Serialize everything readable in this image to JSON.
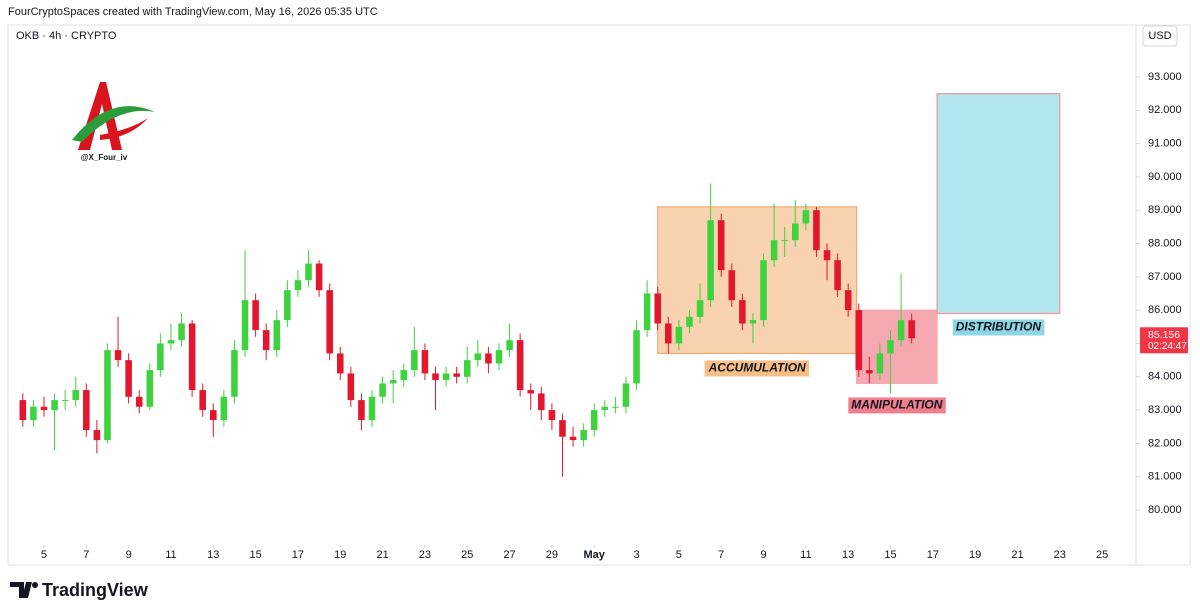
{
  "header": {
    "attribution": "FourCryptoSpaces created with TradingView.com, May 16, 2026 05:35 UTC",
    "symbol": "OKB · 4h · CRYPTO",
    "currency": "USD",
    "brand": "TradingView",
    "watermark": "@X_Four_iv"
  },
  "chart_data": {
    "type": "candlestick",
    "up_color": "#3fd23f",
    "down_color": "#e3162d",
    "xlim": [
      3.3,
      56.6
    ],
    "ylim": [
      79.1,
      93.96
    ],
    "xticks": [
      5,
      7,
      9,
      11,
      13,
      15,
      17,
      19,
      21,
      23,
      25,
      27,
      29,
      {
        "value": 31,
        "label": "May"
      },
      {
        "value": 33,
        "label": "3"
      },
      {
        "value": 35,
        "label": "5"
      },
      {
        "value": 37,
        "label": "7"
      },
      {
        "value": 39,
        "label": "9"
      },
      {
        "value": 41,
        "label": "11"
      },
      {
        "value": 43,
        "label": "13"
      },
      {
        "value": 45,
        "label": "15"
      },
      {
        "value": 47,
        "label": "17"
      },
      {
        "value": 49,
        "label": "19"
      },
      {
        "value": 51,
        "label": "21"
      },
      {
        "value": 53,
        "label": "23"
      },
      {
        "value": 55,
        "label": "25"
      }
    ],
    "yticks": [
      {
        "value": 80,
        "label": "80.000"
      },
      {
        "value": 81,
        "label": "81.000"
      },
      {
        "value": 82,
        "label": "82.000"
      },
      {
        "value": 83,
        "label": "83.000"
      },
      {
        "value": 84,
        "label": "84.000"
      },
      {
        "value": 85,
        "label": "85.000"
      },
      {
        "value": 86,
        "label": "86.000"
      },
      {
        "value": 87,
        "label": "87.000"
      },
      {
        "value": 88,
        "label": "88.000"
      },
      {
        "value": 89,
        "label": "89.000"
      },
      {
        "value": 90,
        "label": "90.000"
      },
      {
        "value": 91,
        "label": "91.000"
      },
      {
        "value": 92,
        "label": "92.000"
      },
      {
        "value": 93,
        "label": "93.000"
      }
    ],
    "x": [
      4,
      4.5,
      5,
      5.5,
      6,
      6.5,
      7,
      7.5,
      8,
      8.5,
      9,
      9.5,
      10,
      10.5,
      11,
      11.5,
      12,
      12.5,
      13,
      13.5,
      14,
      14.5,
      15,
      15.5,
      16,
      16.5,
      17,
      17.5,
      18,
      18.5,
      19,
      19.5,
      20,
      20.5,
      21,
      21.5,
      22,
      22.5,
      23,
      23.5,
      24,
      24.5,
      25,
      25.5,
      26,
      26.5,
      27,
      27.5,
      28,
      28.5,
      29,
      29.5,
      30,
      30.5,
      31,
      31.5,
      32,
      32.5,
      33,
      33.5,
      34,
      34.5,
      35,
      35.5,
      36,
      36.5,
      37,
      37.5,
      38,
      38.5,
      39,
      39.5,
      40,
      40.5,
      41,
      41.5,
      42,
      42.5,
      43,
      43.5,
      44,
      44.5,
      45,
      45.5,
      46
    ],
    "open": [
      83.3,
      82.7,
      83.1,
      83.0,
      83.3,
      83.3,
      83.6,
      82.4,
      82.1,
      84.8,
      84.5,
      83.4,
      83.1,
      84.2,
      85.0,
      85.1,
      85.6,
      83.6,
      83.0,
      82.7,
      83.4,
      84.8,
      86.3,
      85.4,
      84.8,
      85.7,
      86.6,
      86.9,
      87.4,
      86.6,
      84.7,
      84.1,
      83.3,
      82.7,
      83.4,
      83.8,
      83.9,
      84.2,
      84.8,
      84.1,
      83.9,
      84.1,
      84.0,
      84.5,
      84.7,
      84.4,
      84.8,
      85.1,
      83.6,
      83.5,
      83.0,
      82.7,
      82.2,
      82.1,
      82.4,
      83.0,
      83.1,
      83.1,
      83.8,
      85.4,
      86.5,
      85.6,
      85.0,
      85.5,
      85.8,
      86.3,
      88.7,
      87.2,
      86.3,
      85.6,
      85.7,
      87.5,
      88.1,
      88.1,
      88.6,
      89.0,
      87.8,
      87.5,
      86.6,
      86.0,
      84.2,
      84.1,
      84.7,
      85.1,
      85.7
    ],
    "high": [
      83.5,
      83.3,
      83.4,
      83.5,
      83.6,
      84.0,
      83.8,
      82.7,
      85.0,
      85.8,
      84.7,
      83.6,
      84.4,
      85.3,
      85.6,
      85.9,
      85.7,
      83.8,
      83.2,
      83.6,
      85.1,
      87.8,
      86.5,
      85.6,
      86.0,
      86.9,
      87.2,
      87.8,
      87.5,
      86.8,
      84.9,
      84.3,
      83.5,
      83.6,
      84.0,
      84.2,
      84.4,
      85.5,
      85.0,
      84.3,
      84.3,
      84.3,
      84.9,
      85.1,
      84.9,
      85.0,
      85.6,
      85.3,
      83.8,
      83.7,
      83.2,
      82.9,
      82.5,
      82.6,
      83.2,
      83.3,
      83.4,
      84.0,
      85.7,
      86.9,
      86.7,
      85.8,
      85.7,
      86.0,
      86.8,
      89.8,
      88.9,
      87.4,
      86.5,
      85.9,
      87.7,
      89.2,
      88.5,
      89.3,
      89.2,
      89.1,
      88.0,
      87.7,
      86.8,
      86.2,
      84.6,
      85.0,
      85.4,
      87.1,
      85.9
    ],
    "low": [
      82.5,
      82.5,
      82.8,
      81.8,
      83.0,
      83.1,
      82.2,
      81.7,
      82.0,
      84.3,
      83.2,
      82.9,
      83.0,
      84.0,
      84.8,
      84.9,
      83.4,
      82.8,
      82.2,
      82.5,
      83.2,
      84.6,
      85.2,
      84.5,
      84.6,
      85.5,
      86.4,
      86.7,
      86.4,
      84.5,
      83.9,
      83.1,
      82.4,
      82.5,
      83.2,
      83.2,
      83.7,
      84.0,
      83.9,
      83.0,
      83.7,
      83.8,
      83.8,
      84.3,
      84.1,
      84.2,
      84.6,
      83.4,
      83.0,
      82.7,
      82.4,
      81.0,
      81.9,
      81.9,
      82.2,
      82.8,
      82.9,
      82.9,
      83.6,
      85.2,
      85.4,
      84.7,
      84.8,
      85.3,
      85.6,
      86.1,
      87.0,
      86.1,
      85.4,
      85.0,
      85.5,
      87.3,
      87.6,
      87.9,
      88.4,
      87.6,
      86.9,
      86.4,
      85.8,
      84.0,
      83.8,
      83.9,
      83.5,
      84.9,
      85.0
    ],
    "close": [
      82.7,
      83.1,
      83.0,
      83.3,
      83.3,
      83.6,
      82.4,
      82.1,
      84.8,
      84.5,
      83.4,
      83.1,
      84.2,
      85.0,
      85.1,
      85.6,
      83.6,
      83.0,
      82.7,
      83.4,
      84.8,
      86.3,
      85.4,
      84.8,
      85.7,
      86.6,
      86.9,
      87.4,
      86.6,
      84.7,
      84.1,
      83.3,
      82.7,
      83.4,
      83.8,
      83.9,
      84.2,
      84.8,
      84.1,
      83.9,
      84.1,
      84.0,
      84.5,
      84.7,
      84.4,
      84.8,
      85.1,
      83.6,
      83.5,
      83.0,
      82.7,
      82.2,
      82.1,
      82.4,
      83.0,
      83.1,
      83.1,
      83.8,
      85.4,
      86.5,
      85.6,
      85.0,
      85.5,
      85.8,
      86.3,
      88.7,
      87.2,
      86.3,
      85.6,
      85.7,
      87.5,
      88.1,
      88.1,
      88.6,
      89.0,
      87.8,
      87.5,
      86.6,
      86.0,
      84.2,
      84.1,
      84.7,
      85.1,
      85.7,
      85.156
    ],
    "countdown": "02:24:47",
    "zones": [
      {
        "label": "ACCUMULATION",
        "x": [
          34.0,
          43.4
        ],
        "y": [
          84.7,
          89.1
        ],
        "fill": "#f9d3b0",
        "stroke": "#f0a870",
        "label_color": "#f7bf85"
      },
      {
        "label": "MANIPULATION",
        "x": [
          43.4,
          47.2
        ],
        "y": [
          83.8,
          86.0
        ],
        "fill": "#f6a8b0",
        "stroke": "#f6a8b0",
        "label_color": "#f07e8c"
      },
      {
        "label": "DISTRIBUTION",
        "x": [
          47.2,
          53.0
        ],
        "y": [
          85.9,
          92.5
        ],
        "fill": "#b3e7ef",
        "stroke": "#f09898",
        "label_color": "#8fd6e4"
      }
    ]
  }
}
